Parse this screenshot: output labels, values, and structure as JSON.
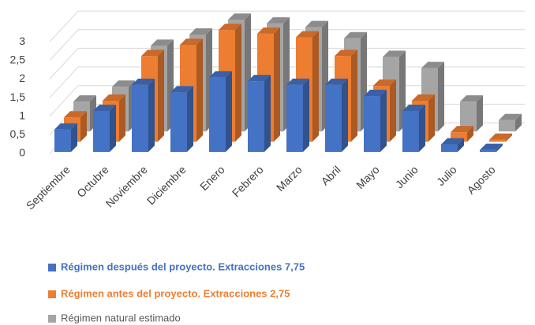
{
  "chart_data": {
    "type": "bar3d",
    "categories": [
      "Septiembre",
      "Octubre",
      "Noviembre",
      "Diciembre",
      "Enero",
      "Febrero",
      "Marzo",
      "Abril",
      "Mayo",
      "Junio",
      "Julio",
      "Agosto"
    ],
    "series": [
      {
        "name": "Régimen después del proyecto. Extracciones 7,75",
        "color": "#4472c4",
        "values": [
          0.6,
          1.1,
          1.8,
          1.6,
          2.0,
          1.9,
          1.8,
          1.8,
          1.5,
          1.1,
          0.2,
          0.05
        ]
      },
      {
        "name": "Régimen antes del proyecto. Extracciones 2,75",
        "color": "#ed7d31",
        "values": [
          0.65,
          1.1,
          2.3,
          2.6,
          3.0,
          2.9,
          2.8,
          2.3,
          1.5,
          1.1,
          0.25,
          0.05
        ]
      },
      {
        "name": "Régimen natural estimado",
        "color": "#a5a5a5",
        "values": [
          0.8,
          1.2,
          2.3,
          2.6,
          3.0,
          2.9,
          2.8,
          2.5,
          2.0,
          1.7,
          0.8,
          0.3
        ]
      }
    ],
    "ylim": [
      0,
      3
    ],
    "yticks": [
      0,
      {
        "value": 0.5,
        "label": "0,5"
      },
      1,
      {
        "value": 1.5,
        "label": "1,5"
      },
      2,
      {
        "value": 2.5,
        "label": "2,5"
      },
      3
    ],
    "grid": true
  }
}
